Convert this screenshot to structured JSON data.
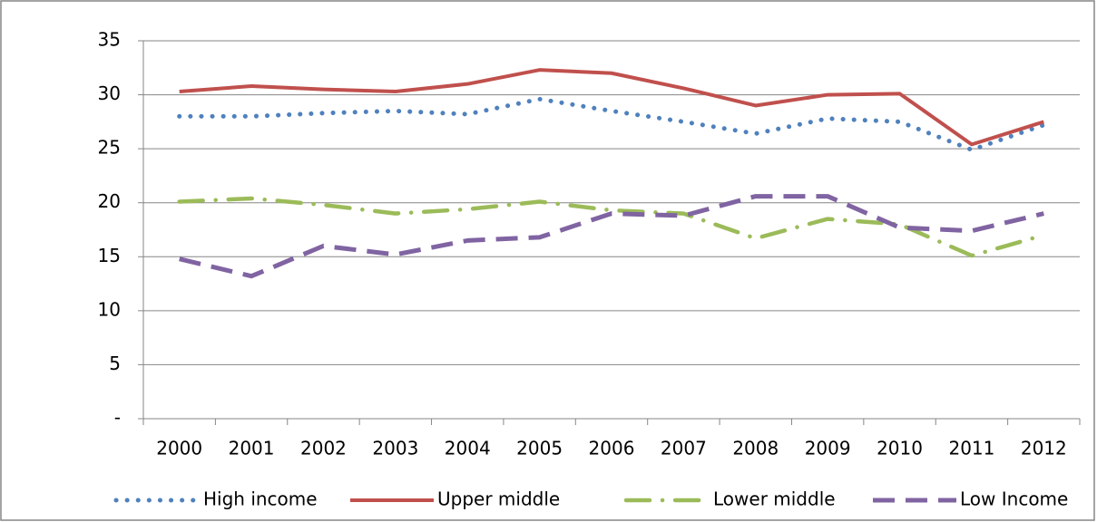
{
  "chart_data": {
    "type": "line",
    "categories": [
      "2000",
      "2001",
      "2002",
      "2003",
      "2004",
      "2005",
      "2006",
      "2007",
      "2008",
      "2009",
      "2010",
      "2011",
      "2012"
    ],
    "series": [
      {
        "name": "High income",
        "color": "#4f81bd",
        "style": "dot",
        "values": [
          28,
          28,
          28.3,
          28.5,
          28.2,
          29.6,
          28.5,
          27.5,
          26.4,
          27.8,
          27.5,
          24.9,
          27.2
        ]
      },
      {
        "name": "Upper middle",
        "color": "#c0504d",
        "style": "solid",
        "values": [
          30.3,
          30.8,
          30.5,
          30.3,
          31,
          32.3,
          32,
          30.6,
          29,
          30,
          30.1,
          25.4,
          27.5
        ]
      },
      {
        "name": "Lower middle",
        "color": "#9bbb59",
        "style": "dash-dot",
        "values": [
          20.1,
          20.4,
          19.8,
          19,
          19.4,
          20.1,
          19.3,
          19,
          16.7,
          18.5,
          18,
          15.1,
          17
        ]
      },
      {
        "name": "Low Income",
        "color": "#8064a2",
        "style": "dash",
        "values": [
          14.8,
          13.2,
          16,
          15.2,
          16.5,
          16.8,
          19,
          18.8,
          20.6,
          20.6,
          17.7,
          17.4,
          19
        ]
      }
    ],
    "ylim": [
      0,
      35
    ],
    "yticks": [
      {
        "value": 0,
        "label": "-"
      },
      5,
      10,
      15,
      20,
      25,
      30,
      35
    ],
    "grid": true,
    "legend": "bottom"
  }
}
